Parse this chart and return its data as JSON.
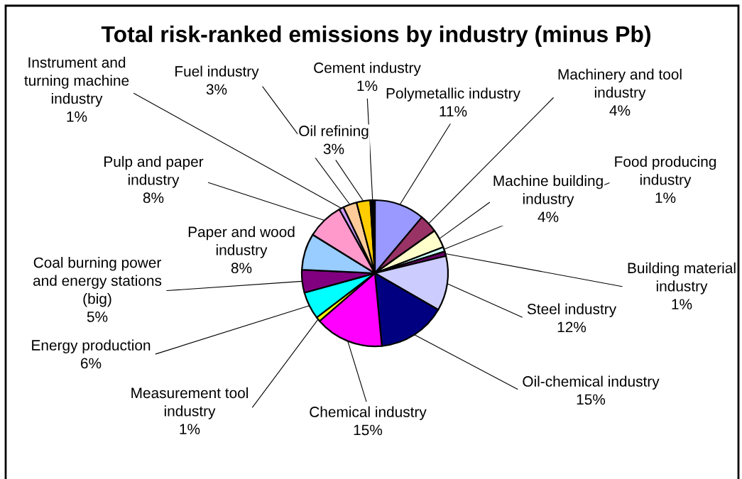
{
  "chart_data": {
    "type": "pie",
    "title": "Total risk-ranked emissions by industry (minus Pb)",
    "categories": [
      "Polymetallic industry",
      "Machinery and tool industry",
      "Machine building industry",
      "Food producing industry",
      "Building material industry",
      "Steel industry",
      "Oil-chemical industry",
      "Chemical industry",
      "Measurement tool industry",
      "Energy production",
      "Coal burning power and energy stations (big)",
      "Paper and wood industry",
      "Pulp and paper industry",
      "Instrument and turning machine industry",
      "Fuel industry",
      "Oil refining",
      "Cement industry"
    ],
    "values": [
      11,
      4,
      4,
      1,
      1,
      12,
      15,
      15,
      1,
      6,
      5,
      8,
      8,
      1,
      3,
      3,
      1
    ],
    "value_labels": [
      "11%",
      "4%",
      "4%",
      "1%",
      "1%",
      "12%",
      "15%",
      "15%",
      "1%",
      "6%",
      "5%",
      "8%",
      "8%",
      "1%",
      "3%",
      "3%",
      "1%"
    ],
    "colors": [
      "#9999ff",
      "#993366",
      "#ffffcc",
      "#ccffff",
      "#660066",
      "#ccccff",
      "#000080",
      "#ff00ff",
      "#ffff00",
      "#00ffff",
      "#800080",
      "#99ccff",
      "#ff99cc",
      "#cc99ff",
      "#ffcc99",
      "#ffcc00",
      "#000000"
    ]
  }
}
